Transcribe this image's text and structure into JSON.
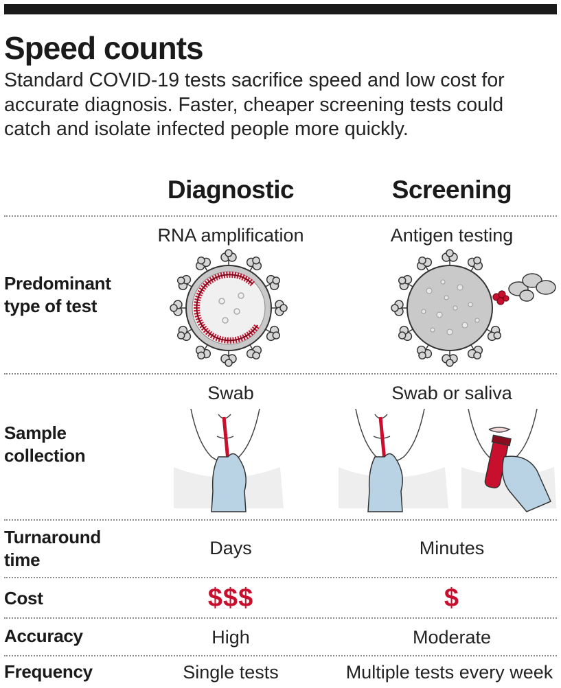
{
  "title": "Speed counts",
  "subtitle": "Standard COVID-19 tests sacrifice speed and low cost for accurate diagnosis. Faster, cheaper screening tests could catch and isolate infected people more quickly.",
  "columns": {
    "diagnostic": "Diagnostic",
    "screening": "Screening"
  },
  "rows": {
    "test_type": {
      "label": "Predominant type of test",
      "diagnostic": "RNA amplification",
      "screening": "Antigen testing"
    },
    "sample": {
      "label": "Sample collection",
      "diagnostic": "Swab",
      "screening": "Swab or saliva"
    },
    "turnaround": {
      "label": "Turnaround time",
      "diagnostic": "Days",
      "screening": "Minutes"
    },
    "cost": {
      "label": "Cost",
      "diagnostic": "$$$",
      "screening": "$"
    },
    "accuracy": {
      "label": "Accuracy",
      "diagnostic": "High",
      "screening": "Moderate"
    },
    "frequency": {
      "label": "Frequency",
      "diagnostic": "Single tests",
      "screening": "Multiple tests every week"
    }
  },
  "colors": {
    "accent_red": "#c8102e",
    "glove_blue": "#b9d3e4",
    "virus_gray": "#c9c9c9"
  }
}
